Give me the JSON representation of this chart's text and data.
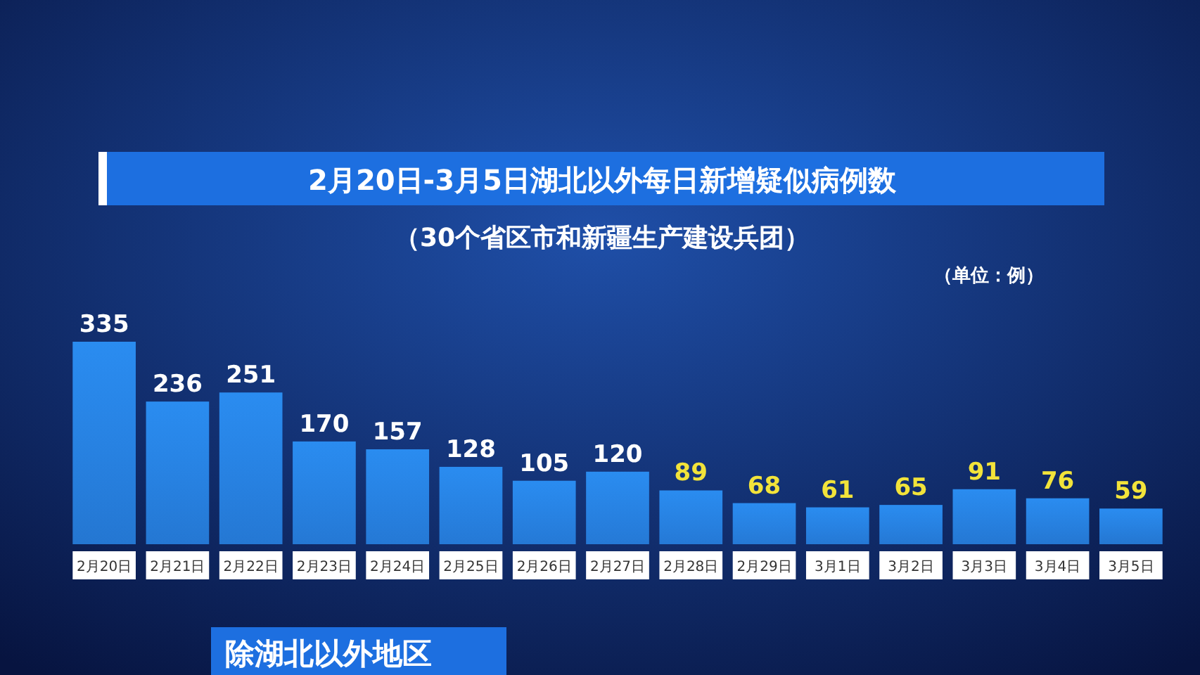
{
  "chart_data": {
    "type": "bar",
    "title": "2月20日-3月5日湖北以外每日新增疑似病例数",
    "subtitle": "（30个省区市和新疆生产建设兵团）",
    "categories": [
      "2月20日",
      "2月21日",
      "2月22日",
      "2月23日",
      "2月24日",
      "2月25日",
      "2月26日",
      "2月27日",
      "2月28日",
      "2月29日",
      "3月1日",
      "3月2日",
      "3月3日",
      "3月4日",
      "3月5日"
    ],
    "values": [
      335,
      236,
      251,
      170,
      157,
      128,
      105,
      120,
      89,
      68,
      61,
      65,
      91,
      76,
      59
    ],
    "color": "#2a8cf0",
    "data_labels": true,
    "annotations": [
      "（单位：例）",
      "除湖北以外地区"
    ]
  }
}
